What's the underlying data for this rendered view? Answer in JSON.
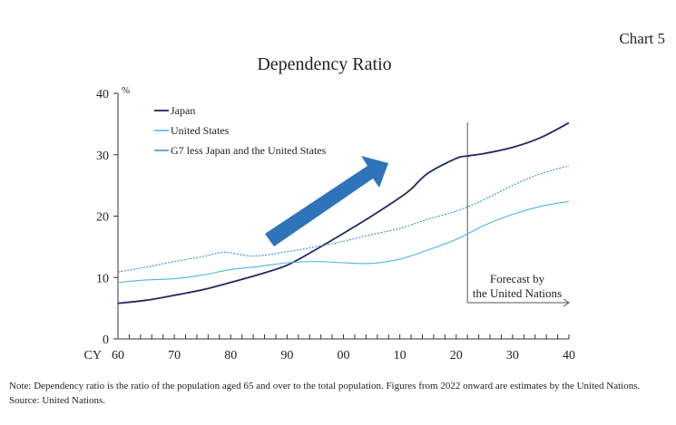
{
  "chart_label": "Chart 5",
  "chart_data": {
    "type": "line",
    "title": "Dependency Ratio",
    "ylabel": "%",
    "xlabel": "CY",
    "ylim": [
      0,
      40
    ],
    "xlim": [
      1960,
      2040
    ],
    "yticks": [
      "0",
      "10",
      "20",
      "30",
      "40"
    ],
    "xticks": [
      "60",
      "70",
      "80",
      "90",
      "00",
      "10",
      "20",
      "30",
      "40"
    ],
    "legend_position": "top-left",
    "annotation": [
      "Forecast by",
      "the United Nations"
    ],
    "forecast_start": 2022,
    "series": [
      {
        "name": "Japan",
        "color": "#1f2a5c",
        "style": "solid",
        "x": [
          1960,
          1965,
          1970,
          1975,
          1980,
          1985,
          1990,
          1995,
          2000,
          2005,
          2010,
          2012,
          2015,
          2020,
          2022,
          2025,
          2030,
          2035,
          2040
        ],
        "values": [
          5.8,
          6.3,
          7.1,
          8.0,
          9.2,
          10.5,
          12.0,
          14.5,
          17.2,
          20.0,
          23.0,
          24.4,
          27.0,
          29.4,
          29.8,
          30.2,
          31.2,
          32.8,
          35.2
        ]
      },
      {
        "name": "United States",
        "color": "#4fb3e6",
        "style": "solid",
        "x": [
          1960,
          1965,
          1970,
          1975,
          1980,
          1985,
          1990,
          1995,
          2000,
          2005,
          2010,
          2015,
          2020,
          2025,
          2030,
          2035,
          2040
        ],
        "values": [
          9.2,
          9.6,
          9.8,
          10.4,
          11.3,
          11.8,
          12.4,
          12.6,
          12.4,
          12.3,
          13.0,
          14.5,
          16.2,
          18.5,
          20.3,
          21.6,
          22.4
        ]
      },
      {
        "name": "G7 less Japan and the United States",
        "color": "#3a8fd6",
        "style": "dotted",
        "x": [
          1960,
          1965,
          1970,
          1975,
          1979,
          1984,
          1990,
          1995,
          2000,
          2005,
          2010,
          2015,
          2020,
          2025,
          2030,
          2035,
          2040
        ],
        "values": [
          10.9,
          11.7,
          12.6,
          13.4,
          14.1,
          13.5,
          14.2,
          15.0,
          15.9,
          17.0,
          18.0,
          19.5,
          20.8,
          22.7,
          25.0,
          26.9,
          28.2
        ]
      }
    ]
  },
  "note": "Note: Dependency ratio is the ratio of the population aged 65 and over to the total population. Figures from 2022 onward are estimates by the United Nations.",
  "source": "Source: United Nations."
}
